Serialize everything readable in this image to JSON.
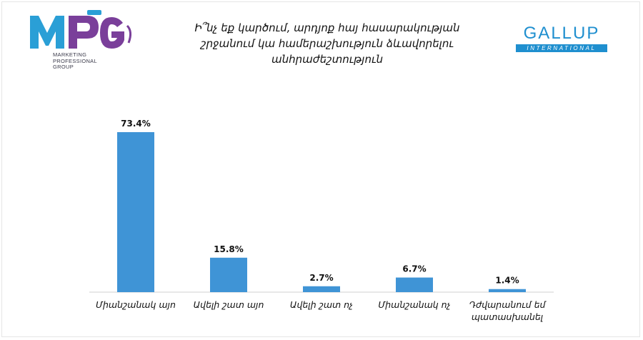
{
  "logos": {
    "left_brand": "MPG",
    "left_brand_lines": [
      "MARKETING",
      "PROFESSIONAL",
      "GROUP"
    ],
    "right_brand": "GALLUP",
    "right_brand_sub": "INTERNATIONAL"
  },
  "title_lines": [
    "Ի՞նչ եք կարծում, արդյոք հայ հասարակության",
    "շրջանում կա համերաշխություն ձևավորելու",
    "անհրաժեշտություն"
  ],
  "colors": {
    "bar": "#3f94d6",
    "axis": "#d0d0d0",
    "text": "#111111"
  },
  "chart_data": {
    "type": "bar",
    "categories": [
      [
        "Միանշանակ այո"
      ],
      [
        "Ավելի շատ այո"
      ],
      [
        "Ավելի շատ ոչ"
      ],
      [
        "Միանշանակ ոչ"
      ],
      [
        "Դժվարանում եմ",
        "պատասխանել"
      ]
    ],
    "values": [
      73.4,
      15.8,
      2.7,
      6.7,
      1.4
    ],
    "value_labels": [
      "73.4%",
      "15.8%",
      "2.7%",
      "6.7%",
      "1.4%"
    ],
    "ylim": [
      0,
      80
    ],
    "grid": false,
    "legend": "none"
  }
}
